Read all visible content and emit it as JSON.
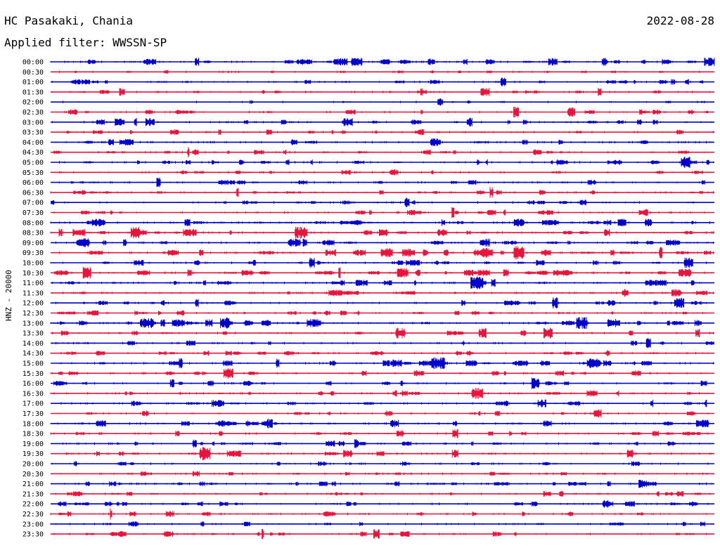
{
  "header": {
    "station": "HC Pasakaki, Chania",
    "date": "2022-08-28",
    "filter": "Applied filter: WWSSN-SP"
  },
  "channel_label": "HNZ - 20000",
  "colors": {
    "trace_a": "#0000cc",
    "trace_b": "#e8143c",
    "text": "#000000",
    "background": "#ffffff"
  },
  "chart_data": {
    "type": "line",
    "kind": "helicorder",
    "title": "HC Pasakaki, Chania",
    "subtitle": "Applied filter: WWSSN-SP",
    "ylabel": "HNZ - 20000",
    "xlabel": "",
    "categories": [
      "00:00",
      "00:30",
      "01:00",
      "01:30",
      "02:00",
      "02:30",
      "03:00",
      "03:30",
      "04:00",
      "04:30",
      "05:00",
      "05:30",
      "06:00",
      "06:30",
      "07:00",
      "07:30",
      "08:00",
      "08:30",
      "09:00",
      "09:30",
      "10:00",
      "10:30",
      "11:00",
      "11:30",
      "12:00",
      "12:30",
      "13:00",
      "13:30",
      "14:00",
      "14:30",
      "15:00",
      "15:30",
      "16:00",
      "16:30",
      "17:00",
      "17:30",
      "18:00",
      "18:30",
      "19:00",
      "19:30",
      "20:00",
      "20:30",
      "21:00",
      "21:30",
      "22:00",
      "22:30",
      "23:00",
      "23:30"
    ],
    "row_colors_cycle": [
      "#0000cc",
      "#e8143c"
    ],
    "row_noise_level": [
      3,
      1,
      2,
      2,
      1,
      2,
      2,
      2,
      3,
      2,
      2,
      2,
      2,
      2,
      2,
      2,
      3,
      3,
      3,
      3,
      2,
      3,
      3,
      3,
      2,
      2,
      3,
      2,
      2,
      2,
      3,
      2,
      2,
      3,
      3,
      2,
      3,
      2,
      2,
      3,
      2,
      2,
      2,
      2,
      2,
      2,
      2,
      2
    ],
    "grid": false,
    "legend": "none"
  }
}
